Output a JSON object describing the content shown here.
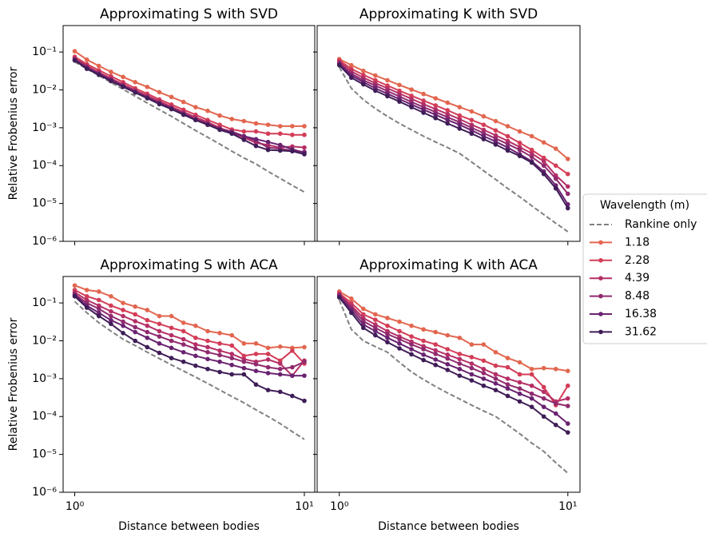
{
  "legend": {
    "title": "Wavelength (m)",
    "loc": "right"
  },
  "chart_data": [
    {
      "type": "line",
      "title": "Approximating S with SVD",
      "ylabel": "Relative Frobenius error",
      "xscale": "log",
      "yscale": "log",
      "xlim": [
        0.89,
        11.1
      ],
      "ylim": [
        1e-06,
        0.5
      ],
      "xticks": [
        1,
        10
      ],
      "yticks": [
        {
          "value": 0.1,
          "label": "10⁻¹"
        },
        {
          "value": 0.01,
          "label": "10⁻²"
        },
        {
          "value": 0.001,
          "label": "10⁻³"
        },
        {
          "value": 0.0001,
          "label": "10⁻⁴"
        },
        {
          "value": 1e-05,
          "label": "10⁻⁵"
        },
        {
          "value": 1e-06,
          "label": "10⁻⁶"
        }
      ],
      "x": [
        1,
        1.129,
        1.274,
        1.438,
        1.624,
        1.833,
        2.069,
        2.336,
        2.637,
        2.976,
        3.36,
        3.793,
        4.281,
        4.833,
        5.456,
        6.158,
        6.952,
        7.848,
        8.859,
        10
      ],
      "series": [
        {
          "name": "Rankine only",
          "color": "#808080",
          "dashed": true,
          "values": [
            0.055,
            0.036,
            0.024,
            0.0157,
            0.0104,
            0.0068,
            0.0045,
            0.003,
            0.002,
            0.0013,
            0.00085,
            0.00056,
            0.00037,
            0.00024,
            0.00016,
            0.00011,
            7e-05,
            4.6e-05,
            3e-05,
            2e-05
          ]
        },
        {
          "name": "1.18",
          "color": "#e2664f",
          "values": [
            0.105,
            0.063,
            0.043,
            0.03,
            0.022,
            0.016,
            0.012,
            0.0087,
            0.0065,
            0.0048,
            0.0035,
            0.0028,
            0.0021,
            0.0017,
            0.0015,
            0.0013,
            0.0012,
            0.0011,
            0.0011,
            0.0011
          ]
        },
        {
          "name": "2.28",
          "color": "#d43d57",
          "values": [
            0.075,
            0.048,
            0.033,
            0.023,
            0.016,
            0.011,
            0.0079,
            0.0056,
            0.0041,
            0.003,
            0.0022,
            0.0016,
            0.0012,
            0.0009,
            0.0008,
            0.0008,
            0.0007,
            0.0007,
            0.00065,
            0.00065
          ]
        },
        {
          "name": "4.39",
          "color": "#b52f66",
          "values": [
            0.068,
            0.043,
            0.029,
            0.02,
            0.014,
            0.0098,
            0.007,
            0.005,
            0.0036,
            0.0026,
            0.0019,
            0.0014,
            0.001,
            0.00075,
            0.00055,
            0.0004,
            0.00035,
            0.0003,
            0.00032,
            0.0003
          ]
        },
        {
          "name": "8.48",
          "color": "#902a6e",
          "values": [
            0.065,
            0.04,
            0.027,
            0.019,
            0.013,
            0.0092,
            0.0065,
            0.0046,
            0.0033,
            0.0024,
            0.0017,
            0.0013,
            0.00095,
            0.0008,
            0.0006,
            0.00045,
            0.0003,
            0.00028,
            0.00025,
            0.00023
          ]
        },
        {
          "name": "16.38",
          "color": "#6a2270",
          "values": [
            0.062,
            0.038,
            0.026,
            0.018,
            0.0125,
            0.0088,
            0.0062,
            0.0044,
            0.0032,
            0.0023,
            0.0016,
            0.0012,
            0.0009,
            0.00075,
            0.0006,
            0.0005,
            0.00042,
            0.00035,
            0.00027,
            0.00022
          ]
        },
        {
          "name": "31.62",
          "color": "#3f1d57",
          "values": [
            0.06,
            0.036,
            0.025,
            0.017,
            0.012,
            0.0085,
            0.006,
            0.0042,
            0.0031,
            0.0022,
            0.0016,
            0.0012,
            0.00088,
            0.0007,
            0.00048,
            0.00033,
            0.00026,
            0.00025,
            0.00024,
            0.0002
          ]
        }
      ]
    },
    {
      "type": "line",
      "title": "Approximating K with SVD",
      "xscale": "log",
      "yscale": "log",
      "xlim": [
        0.8,
        11.3
      ],
      "ylim": [
        1e-06,
        0.5
      ],
      "xticks": [
        1,
        10
      ],
      "yticks": [
        0.1,
        0.01,
        0.001,
        0.0001,
        1e-05,
        1e-06
      ],
      "x": [
        1,
        1.129,
        1.274,
        1.438,
        1.624,
        1.833,
        2.069,
        2.336,
        2.637,
        2.976,
        3.36,
        3.793,
        4.281,
        4.833,
        5.456,
        6.158,
        6.952,
        7.848,
        8.859,
        10
      ],
      "series": [
        {
          "name": "Rankine only",
          "color": "#808080",
          "dashed": true,
          "values": [
            0.04,
            0.011,
            0.0055,
            0.0032,
            0.002,
            0.0013,
            0.00088,
            0.0006,
            0.00042,
            0.0003,
            0.00021,
            0.000124,
            7.3e-05,
            4.3e-05,
            2.5e-05,
            1.5e-05,
            8.7e-06,
            5.1e-06,
            3e-06,
            1.8e-06
          ]
        },
        {
          "name": "1.18",
          "color": "#e2664f",
          "values": [
            0.065,
            0.045,
            0.032,
            0.024,
            0.018,
            0.0135,
            0.0102,
            0.0078,
            0.006,
            0.0046,
            0.0035,
            0.0027,
            0.002,
            0.0015,
            0.0011,
            0.0008,
            0.0006,
            0.00041,
            0.00028,
            0.00015
          ]
        },
        {
          "name": "2.28",
          "color": "#d43d57",
          "values": [
            0.06,
            0.036,
            0.025,
            0.018,
            0.013,
            0.0095,
            0.007,
            0.0052,
            0.0039,
            0.0029,
            0.0021,
            0.0016,
            0.0012,
            0.00085,
            0.0006,
            0.0004,
            0.00026,
            0.00016,
            0.0001,
            6e-05
          ]
        },
        {
          "name": "4.39",
          "color": "#b52f66",
          "values": [
            0.055,
            0.031,
            0.021,
            0.015,
            0.011,
            0.008,
            0.0058,
            0.0042,
            0.0031,
            0.0023,
            0.0017,
            0.0012,
            0.00088,
            0.00063,
            0.00045,
            0.00031,
            0.00021,
            0.00013,
            5.5e-05,
            2.8e-05
          ]
        },
        {
          "name": "8.48",
          "color": "#902a6e",
          "values": [
            0.05,
            0.027,
            0.018,
            0.013,
            0.0093,
            0.0067,
            0.0048,
            0.0035,
            0.0026,
            0.0019,
            0.0014,
            0.001,
            0.00072,
            0.00052,
            0.00037,
            0.00026,
            0.00017,
            0.0001,
            4.5e-05,
            1.8e-05
          ]
        },
        {
          "name": "16.38",
          "color": "#6a2270",
          "values": [
            0.048,
            0.024,
            0.016,
            0.011,
            0.0079,
            0.0057,
            0.0041,
            0.003,
            0.0022,
            0.0016,
            0.0012,
            0.00085,
            0.0006,
            0.00043,
            0.0003,
            0.0002,
            0.00013,
            7e-05,
            3e-05,
            9.5e-06
          ]
        },
        {
          "name": "31.62",
          "color": "#3f1d57",
          "values": [
            0.045,
            0.021,
            0.014,
            0.0095,
            0.0068,
            0.0049,
            0.0035,
            0.0025,
            0.0018,
            0.0013,
            0.00095,
            0.0007,
            0.0005,
            0.00036,
            0.00025,
            0.00018,
            0.00012,
            6e-05,
            2.5e-05,
            7.5e-06
          ]
        }
      ]
    },
    {
      "type": "line",
      "title": "Approximating S with ACA",
      "xlabel": "Distance between bodies",
      "ylabel": "Relative Frobenius error",
      "xscale": "log",
      "yscale": "log",
      "xlim": [
        0.89,
        11.1
      ],
      "ylim": [
        1e-06,
        0.5
      ],
      "xticks": [
        {
          "value": 1,
          "label": "10⁰"
        },
        {
          "value": 10,
          "label": "10¹"
        }
      ],
      "yticks": [
        {
          "value": 0.1,
          "label": "10⁻¹"
        },
        {
          "value": 0.01,
          "label": "10⁻²"
        },
        {
          "value": 0.001,
          "label": "10⁻³"
        },
        {
          "value": 0.0001,
          "label": "10⁻⁴"
        },
        {
          "value": 1e-05,
          "label": "10⁻⁵"
        },
        {
          "value": 1e-06,
          "label": "10⁻⁶"
        }
      ],
      "x": [
        1,
        1.129,
        1.274,
        1.438,
        1.624,
        1.833,
        2.069,
        2.336,
        2.637,
        2.976,
        3.36,
        3.793,
        4.281,
        4.833,
        5.456,
        6.158,
        6.952,
        7.848,
        8.859,
        10
      ],
      "series": [
        {
          "name": "Rankine only",
          "color": "#808080",
          "dashed": true,
          "values": [
            0.11,
            0.055,
            0.03,
            0.018,
            0.011,
            0.0075,
            0.005,
            0.0034,
            0.0023,
            0.0016,
            0.0011,
            0.00075,
            0.0005,
            0.00034,
            0.00023,
            0.00015,
            0.0001,
            6.5e-05,
            4e-05,
            2.5e-05
          ]
        },
        {
          "name": "1.18",
          "color": "#e2664f",
          "values": [
            0.29,
            0.22,
            0.2,
            0.15,
            0.1,
            0.08,
            0.065,
            0.045,
            0.045,
            0.03,
            0.025,
            0.018,
            0.016,
            0.014,
            0.0085,
            0.0085,
            0.0065,
            0.007,
            0.0065,
            0.0068
          ]
        },
        {
          "name": "2.28",
          "color": "#d43d57",
          "values": [
            0.22,
            0.15,
            0.12,
            0.085,
            0.065,
            0.05,
            0.035,
            0.028,
            0.022,
            0.018,
            0.012,
            0.01,
            0.0085,
            0.0075,
            0.004,
            0.0045,
            0.0045,
            0.003,
            0.0055,
            0.0025
          ]
        },
        {
          "name": "4.39",
          "color": "#b52f66",
          "values": [
            0.19,
            0.12,
            0.085,
            0.06,
            0.045,
            0.033,
            0.025,
            0.018,
            0.014,
            0.011,
            0.008,
            0.0068,
            0.0055,
            0.0045,
            0.0033,
            0.0028,
            0.0032,
            0.0025,
            0.0012,
            0.003
          ]
        },
        {
          "name": "8.48",
          "color": "#902a6e",
          "values": [
            0.17,
            0.1,
            0.07,
            0.045,
            0.032,
            0.023,
            0.017,
            0.013,
            0.01,
            0.008,
            0.0062,
            0.005,
            0.0042,
            0.0035,
            0.0028,
            0.0024,
            0.002,
            0.0018,
            0.002,
            0.0028
          ]
        },
        {
          "name": "16.38",
          "color": "#6a2270",
          "values": [
            0.16,
            0.085,
            0.055,
            0.035,
            0.025,
            0.017,
            0.012,
            0.0085,
            0.0065,
            0.005,
            0.004,
            0.0033,
            0.0028,
            0.0023,
            0.0019,
            0.0016,
            0.0014,
            0.0013,
            0.0012,
            0.0012
          ]
        },
        {
          "name": "31.62",
          "color": "#3f1d57",
          "values": [
            0.15,
            0.075,
            0.045,
            0.028,
            0.016,
            0.01,
            0.0068,
            0.0048,
            0.0035,
            0.0028,
            0.0022,
            0.0018,
            0.0015,
            0.0013,
            0.0013,
            0.0007,
            0.0005,
            0.00045,
            0.00035,
            0.00026
          ]
        }
      ]
    },
    {
      "type": "line",
      "title": "Approximating K with ACA",
      "xlabel": "Distance between bodies",
      "xscale": "log",
      "yscale": "log",
      "xlim": [
        0.8,
        11.3
      ],
      "ylim": [
        1e-06,
        0.5
      ],
      "xticks": [
        {
          "value": 1,
          "label": "10⁰"
        },
        {
          "value": 10,
          "label": "10¹"
        }
      ],
      "yticks": [
        0.1,
        0.01,
        0.001,
        0.0001,
        1e-05,
        1e-06
      ],
      "x": [
        1,
        1.129,
        1.274,
        1.438,
        1.624,
        1.833,
        2.069,
        2.336,
        2.637,
        2.976,
        3.36,
        3.793,
        4.281,
        4.833,
        5.456,
        6.158,
        6.952,
        7.848,
        8.859,
        10
      ],
      "series": [
        {
          "name": "Rankine only",
          "color": "#808080",
          "dashed": true,
          "values": [
            0.12,
            0.02,
            0.01,
            0.007,
            0.005,
            0.0027,
            0.0015,
            0.00095,
            0.00062,
            0.00042,
            0.00029,
            0.0002,
            0.00014,
            0.0001,
            6e-05,
            3.5e-05,
            2e-05,
            1.2e-05,
            6e-06,
            3.2e-06
          ]
        },
        {
          "name": "1.18",
          "color": "#e2664f",
          "values": [
            0.2,
            0.13,
            0.07,
            0.05,
            0.04,
            0.032,
            0.025,
            0.02,
            0.017,
            0.014,
            0.012,
            0.008,
            0.008,
            0.005,
            0.0035,
            0.0027,
            0.0018,
            0.0019,
            0.0018,
            0.0016
          ]
        },
        {
          "name": "2.28",
          "color": "#d43d57",
          "values": [
            0.18,
            0.1,
            0.05,
            0.036,
            0.025,
            0.018,
            0.013,
            0.01,
            0.008,
            0.006,
            0.0045,
            0.0037,
            0.003,
            0.0022,
            0.002,
            0.0013,
            0.0013,
            0.0006,
            0.0002,
            0.00065
          ]
        },
        {
          "name": "4.39",
          "color": "#b52f66",
          "values": [
            0.17,
            0.085,
            0.04,
            0.027,
            0.018,
            0.013,
            0.0095,
            0.0072,
            0.0056,
            0.0043,
            0.0033,
            0.0025,
            0.0018,
            0.0013,
            0.001,
            0.0008,
            0.00065,
            0.00045,
            0.00025,
            0.0003
          ]
        },
        {
          "name": "8.48",
          "color": "#902a6e",
          "values": [
            0.16,
            0.075,
            0.033,
            0.022,
            0.015,
            0.011,
            0.008,
            0.006,
            0.0045,
            0.0034,
            0.0025,
            0.0019,
            0.0014,
            0.001,
            0.0007,
            0.00055,
            0.0004,
            0.0003,
            0.00022,
            0.00019
          ]
        },
        {
          "name": "16.38",
          "color": "#6a2270",
          "values": [
            0.15,
            0.065,
            0.027,
            0.018,
            0.012,
            0.0085,
            0.006,
            0.0043,
            0.0032,
            0.0024,
            0.0018,
            0.0013,
            0.001,
            0.00075,
            0.00055,
            0.0004,
            0.0003,
            0.00018,
            0.00012,
            6.5e-05
          ]
        },
        {
          "name": "31.62",
          "color": "#3f1d57",
          "values": [
            0.14,
            0.055,
            0.022,
            0.014,
            0.0092,
            0.0063,
            0.0044,
            0.0031,
            0.0023,
            0.0017,
            0.0012,
            0.0009,
            0.00065,
            0.0005,
            0.00035,
            0.00025,
            0.00018,
            0.0001,
            6e-05,
            3.8e-05
          ]
        }
      ]
    }
  ]
}
